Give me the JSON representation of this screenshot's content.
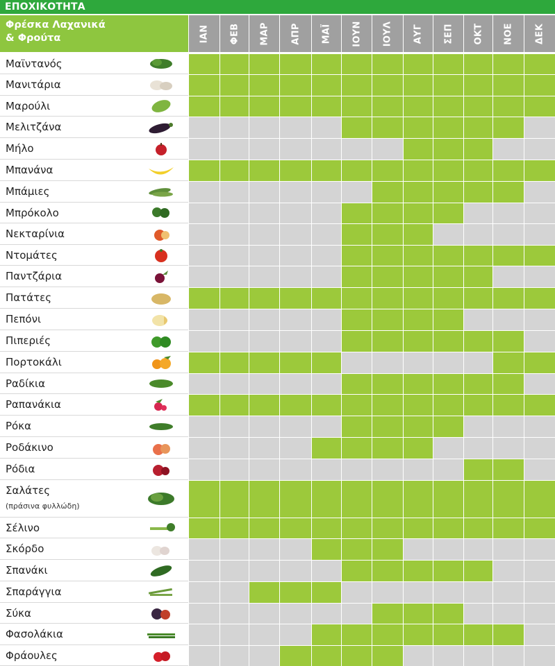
{
  "title": "ΕΠΟΧΙΚΟΤΗΤΑ",
  "header": {
    "line1": "Φρέσκα Λαχανικά",
    "line2": "& Φρούτα"
  },
  "months": [
    "ΙΑΝ",
    "ΦΕΒ",
    "ΜΑΡ",
    "ΑΠΡ",
    "ΜΑΪ",
    "ΙΟΥΝ",
    "ΙΟΥΛ",
    "ΑΥΓ",
    "ΣΕΠ",
    "ΟΚΤ",
    "ΝΟΕ",
    "ΔΕΚ"
  ],
  "colors": {
    "title_bg": "#2ea83c",
    "header_bg": "#8ec63f",
    "month_bg": "#a0a0a0",
    "in_season": "#9cc93b",
    "out_of_season": "#d4d4d4"
  },
  "items": [
    {
      "name": "Μαϊντανός",
      "icon": "parsley-icon",
      "season": [
        1,
        1,
        1,
        1,
        1,
        1,
        1,
        1,
        1,
        1,
        1,
        1
      ]
    },
    {
      "name": "Μανιτάρια",
      "icon": "mushroom-icon",
      "season": [
        1,
        1,
        1,
        1,
        1,
        1,
        1,
        1,
        1,
        1,
        1,
        1
      ]
    },
    {
      "name": "Μαρούλι",
      "icon": "lettuce-icon",
      "season": [
        1,
        1,
        1,
        1,
        1,
        1,
        1,
        1,
        1,
        1,
        1,
        1
      ]
    },
    {
      "name": "Μελιτζάνα",
      "icon": "eggplant-icon",
      "season": [
        0,
        0,
        0,
        0,
        0,
        1,
        1,
        1,
        1,
        1,
        1,
        0
      ]
    },
    {
      "name": "Μήλο",
      "icon": "apple-icon",
      "season": [
        0,
        0,
        0,
        0,
        0,
        0,
        0,
        1,
        1,
        1,
        0,
        0
      ]
    },
    {
      "name": "Μπανάνα",
      "icon": "banana-icon",
      "season": [
        1,
        1,
        1,
        1,
        1,
        1,
        1,
        1,
        1,
        1,
        1,
        1
      ]
    },
    {
      "name": "Μπάμιες",
      "icon": "okra-icon",
      "season": [
        0,
        0,
        0,
        0,
        0,
        0,
        1,
        1,
        1,
        1,
        1,
        0
      ]
    },
    {
      "name": "Μπρόκολο",
      "icon": "broccoli-icon",
      "season": [
        0,
        0,
        0,
        0,
        0,
        1,
        1,
        1,
        1,
        0,
        0,
        0
      ]
    },
    {
      "name": "Νεκταρίνια",
      "icon": "nectarine-icon",
      "season": [
        0,
        0,
        0,
        0,
        0,
        1,
        1,
        1,
        0,
        0,
        0,
        0
      ]
    },
    {
      "name": "Ντομάτες",
      "icon": "tomato-icon",
      "season": [
        0,
        0,
        0,
        0,
        0,
        1,
        1,
        1,
        1,
        1,
        1,
        1
      ]
    },
    {
      "name": "Παντζάρια",
      "icon": "beetroot-icon",
      "season": [
        0,
        0,
        0,
        0,
        0,
        1,
        1,
        1,
        1,
        1,
        0,
        0
      ]
    },
    {
      "name": "Πατάτες",
      "icon": "potato-icon",
      "season": [
        1,
        1,
        1,
        1,
        1,
        1,
        1,
        1,
        1,
        1,
        1,
        1
      ]
    },
    {
      "name": "Πεπόνι",
      "icon": "melon-icon",
      "season": [
        0,
        0,
        0,
        0,
        0,
        1,
        1,
        1,
        1,
        0,
        0,
        0
      ]
    },
    {
      "name": "Πιπεριές",
      "icon": "pepper-icon",
      "season": [
        0,
        0,
        0,
        0,
        0,
        1,
        1,
        1,
        1,
        1,
        1,
        0
      ]
    },
    {
      "name": "Πορτοκάλι",
      "icon": "orange-icon",
      "season": [
        1,
        1,
        1,
        1,
        1,
        0,
        0,
        0,
        0,
        0,
        1,
        1
      ]
    },
    {
      "name": "Ραδίκια",
      "icon": "chicory-icon",
      "season": [
        0,
        0,
        0,
        0,
        0,
        1,
        1,
        1,
        1,
        1,
        1,
        0
      ]
    },
    {
      "name": "Ραπανάκια",
      "icon": "radish-icon",
      "season": [
        1,
        1,
        1,
        1,
        1,
        1,
        1,
        1,
        1,
        1,
        1,
        1
      ]
    },
    {
      "name": "Ρόκα",
      "icon": "rocket-icon",
      "season": [
        0,
        0,
        0,
        0,
        0,
        1,
        1,
        1,
        1,
        0,
        0,
        0
      ]
    },
    {
      "name": "Ροδάκινο",
      "icon": "peach-icon",
      "season": [
        0,
        0,
        0,
        0,
        1,
        1,
        1,
        1,
        0,
        0,
        0,
        0
      ]
    },
    {
      "name": "Ρόδια",
      "icon": "pomegranate-icon",
      "season": [
        0,
        0,
        0,
        0,
        0,
        0,
        0,
        0,
        0,
        1,
        1,
        0
      ]
    },
    {
      "name": "Σαλάτες",
      "sub": "(πράσινα φυλλώδη)",
      "icon": "salad-greens-icon",
      "season": [
        1,
        1,
        1,
        1,
        1,
        1,
        1,
        1,
        1,
        1,
        1,
        1
      ]
    },
    {
      "name": "Σέλινο",
      "icon": "celery-icon",
      "season": [
        1,
        1,
        1,
        1,
        1,
        1,
        1,
        1,
        1,
        1,
        1,
        1
      ]
    },
    {
      "name": "Σκόρδο",
      "icon": "garlic-icon",
      "season": [
        0,
        0,
        0,
        0,
        1,
        1,
        1,
        0,
        0,
        0,
        0,
        0
      ]
    },
    {
      "name": "Σπανάκι",
      "icon": "spinach-icon",
      "season": [
        0,
        0,
        0,
        0,
        0,
        1,
        1,
        1,
        1,
        1,
        0,
        0
      ]
    },
    {
      "name": "Σπαράγγια",
      "icon": "asparagus-icon",
      "season": [
        0,
        0,
        1,
        1,
        1,
        0,
        0,
        0,
        0,
        0,
        0,
        0
      ]
    },
    {
      "name": "Σύκα",
      "icon": "fig-icon",
      "season": [
        0,
        0,
        0,
        0,
        0,
        0,
        1,
        1,
        1,
        0,
        0,
        0
      ]
    },
    {
      "name": "Φασολάκια",
      "icon": "green-beans-icon",
      "season": [
        0,
        0,
        0,
        0,
        1,
        1,
        1,
        1,
        1,
        1,
        1,
        0
      ]
    },
    {
      "name": "Φράουλες",
      "icon": "strawberry-icon",
      "season": [
        0,
        0,
        0,
        1,
        1,
        1,
        1,
        0,
        0,
        0,
        0,
        0
      ]
    }
  ]
}
